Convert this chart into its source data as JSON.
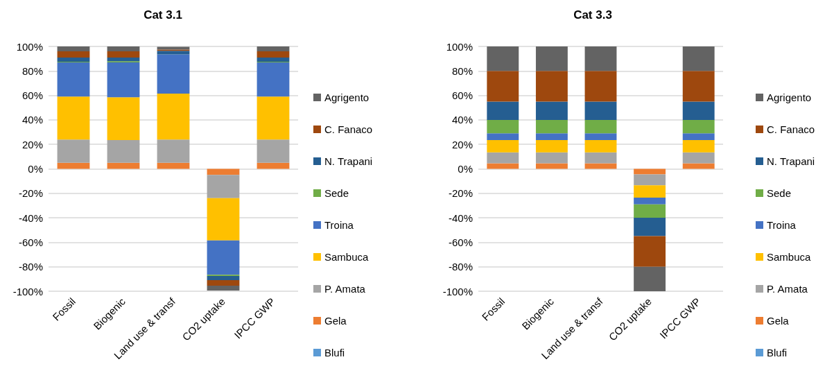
{
  "chart_data": [
    {
      "type": "bar",
      "title": "Cat 3.1",
      "stacked": true,
      "categories": [
        "Fossil",
        "Biogenic",
        "Land use & transf",
        "CO2 uptake",
        "IPCC GWP"
      ],
      "series": [
        {
          "name": "Blufi",
          "color": "#5b9bd5",
          "values": [
            0,
            0,
            0,
            0,
            0
          ]
        },
        {
          "name": "Gela",
          "color": "#ed7d31",
          "values": [
            5,
            5,
            5,
            -5,
            5
          ]
        },
        {
          "name": "P. Amata",
          "color": "#a5a5a5",
          "values": [
            19,
            18.5,
            19,
            -19,
            19
          ]
        },
        {
          "name": "Sambuca",
          "color": "#ffc000",
          "values": [
            35,
            35,
            37.5,
            -34.5,
            35
          ]
        },
        {
          "name": "Troina",
          "color": "#4472c4",
          "values": [
            28,
            28.5,
            32,
            -28,
            28
          ]
        },
        {
          "name": "Sede",
          "color": "#70ad47",
          "values": [
            0.5,
            1,
            null,
            -1,
            0.5
          ]
        },
        {
          "name": "N. Trapani",
          "color": "#255e91",
          "values": [
            3.5,
            3,
            3,
            -3.5,
            3.5
          ]
        },
        {
          "name": "C. Fanaco",
          "color": "#9e480e",
          "values": [
            5,
            5,
            1,
            -4.5,
            5
          ]
        },
        {
          "name": "Agrigento",
          "color": "#636363",
          "values": [
            4,
            4,
            2.2,
            -4,
            4
          ]
        }
      ],
      "ylim": [
        -100,
        100
      ],
      "yticks": [
        {
          "value": -100,
          "label": "-100%"
        },
        {
          "value": -80,
          "label": "-80%"
        },
        {
          "value": -60,
          "label": "-60%"
        },
        {
          "value": -40,
          "label": "-40%"
        },
        {
          "value": -20,
          "label": "-20%"
        },
        {
          "value": 0,
          "label": "0%"
        },
        {
          "value": 20,
          "label": "20%"
        },
        {
          "value": 40,
          "label": "40%"
        },
        {
          "value": 60,
          "label": "60%"
        },
        {
          "value": 80,
          "label": "80%"
        },
        {
          "value": 100,
          "label": "100%"
        }
      ],
      "grid": "y",
      "legend": "right"
    },
    {
      "type": "bar",
      "title": "Cat 3.3",
      "stacked": true,
      "categories": [
        "Fossil",
        "Biogenic",
        "Land use & transf",
        "CO2 uptake",
        "IPCC GWP"
      ],
      "series": [
        {
          "name": "Blufi",
          "color": "#5b9bd5",
          "values": [
            0,
            0,
            0,
            0,
            0
          ]
        },
        {
          "name": "Gela",
          "color": "#ed7d31",
          "values": [
            4.5,
            4.5,
            4.5,
            -4.5,
            4.5
          ]
        },
        {
          "name": "P. Amata",
          "color": "#a5a5a5",
          "values": [
            9,
            9,
            9,
            -9,
            9
          ]
        },
        {
          "name": "Sambuca",
          "color": "#ffc000",
          "values": [
            10,
            10,
            10,
            -10,
            10
          ]
        },
        {
          "name": "Troina",
          "color": "#4472c4",
          "values": [
            5.5,
            5.5,
            5.5,
            -5.5,
            5.5
          ]
        },
        {
          "name": "Sede",
          "color": "#70ad47",
          "values": [
            11,
            11,
            11,
            -11,
            11
          ]
        },
        {
          "name": "N. Trapani",
          "color": "#255e91",
          "values": [
            15,
            15,
            15,
            -15,
            15
          ]
        },
        {
          "name": "C. Fanaco",
          "color": "#9e480e",
          "values": [
            25,
            25,
            25,
            -25,
            25
          ]
        },
        {
          "name": "Agrigento",
          "color": "#636363",
          "values": [
            20,
            20,
            20,
            -20,
            20
          ]
        }
      ],
      "ylim": [
        -100,
        100
      ],
      "yticks": [
        {
          "value": -100,
          "label": "-100%"
        },
        {
          "value": -80,
          "label": "-80%"
        },
        {
          "value": -60,
          "label": "-60%"
        },
        {
          "value": -40,
          "label": "-40%"
        },
        {
          "value": -20,
          "label": "-20%"
        },
        {
          "value": 0,
          "label": "0%"
        },
        {
          "value": 20,
          "label": "20%"
        },
        {
          "value": 40,
          "label": "40%"
        },
        {
          "value": 60,
          "label": "60%"
        },
        {
          "value": 80,
          "label": "80%"
        },
        {
          "value": 100,
          "label": "100%"
        }
      ],
      "grid": "y",
      "legend": "right"
    }
  ]
}
